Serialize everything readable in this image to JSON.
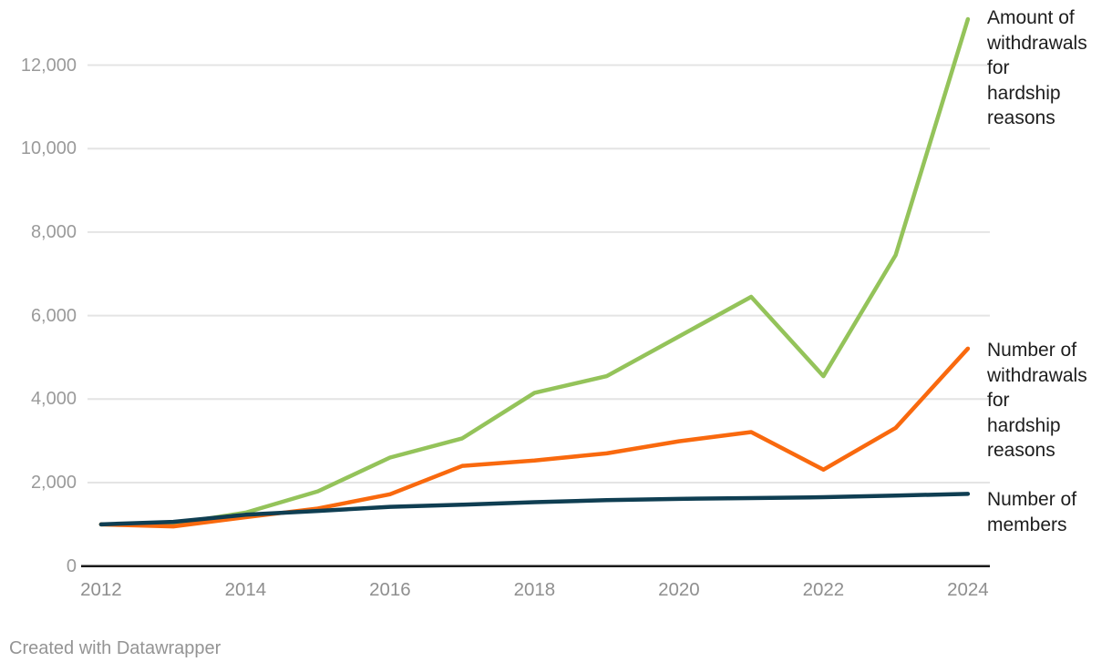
{
  "chart_data": {
    "type": "line",
    "x": [
      2012,
      2013,
      2014,
      2015,
      2016,
      2017,
      2018,
      2019,
      2020,
      2021,
      2022,
      2023,
      2024
    ],
    "series": [
      {
        "name": "Amount of withdrawals for hardship reasons",
        "label_lines": [
          "Amount of",
          "withdrawals",
          "for",
          "hardship",
          "reasons"
        ],
        "color": "#94c35a",
        "values": [
          1000,
          1010,
          1280,
          1790,
          2600,
          3060,
          4150,
          4550,
          5500,
          6450,
          4550,
          7450,
          13100
        ]
      },
      {
        "name": "Number of withdrawals for hardship reasons",
        "label_lines": [
          "Number of",
          "withdrawals",
          "for",
          "hardship",
          "reasons"
        ],
        "color": "#f9690e",
        "values": [
          1000,
          950,
          1170,
          1380,
          1720,
          2400,
          2530,
          2700,
          2990,
          3210,
          2310,
          3310,
          5210
        ]
      },
      {
        "name": "Number of members",
        "label_lines": [
          "Number of",
          "members"
        ],
        "color": "#0f3e52",
        "values": [
          1000,
          1060,
          1230,
          1320,
          1420,
          1470,
          1530,
          1580,
          1610,
          1630,
          1650,
          1690,
          1730
        ]
      }
    ],
    "title": "",
    "xlabel": "",
    "ylabel": "",
    "ylim": [
      0,
      13200
    ],
    "yticks": [
      {
        "value": 0,
        "label": "0"
      },
      {
        "value": 2000,
        "label": "2,000"
      },
      {
        "value": 4000,
        "label": "4,000"
      },
      {
        "value": 6000,
        "label": "6,000"
      },
      {
        "value": 8000,
        "label": "8,000"
      },
      {
        "value": 10000,
        "label": "10,000"
      },
      {
        "value": 12000,
        "label": "12,000"
      }
    ],
    "xticks": [
      {
        "value": 2012,
        "label": "2012"
      },
      {
        "value": 2014,
        "label": "2014"
      },
      {
        "value": 2016,
        "label": "2016"
      },
      {
        "value": 2018,
        "label": "2018"
      },
      {
        "value": 2020,
        "label": "2020"
      },
      {
        "value": 2022,
        "label": "2022"
      },
      {
        "value": 2024,
        "label": "2024"
      }
    ],
    "grid": true,
    "legend_position": "direct-labels-right"
  },
  "colors": {
    "grid": "#e4e4e4",
    "axis": "#1a1a1a",
    "tick_text": "#9a9a9a",
    "label_text": "#1d1d1d",
    "footer_text": "#949494",
    "background": "#ffffff"
  },
  "footer": {
    "text": "Created with Datawrapper"
  }
}
